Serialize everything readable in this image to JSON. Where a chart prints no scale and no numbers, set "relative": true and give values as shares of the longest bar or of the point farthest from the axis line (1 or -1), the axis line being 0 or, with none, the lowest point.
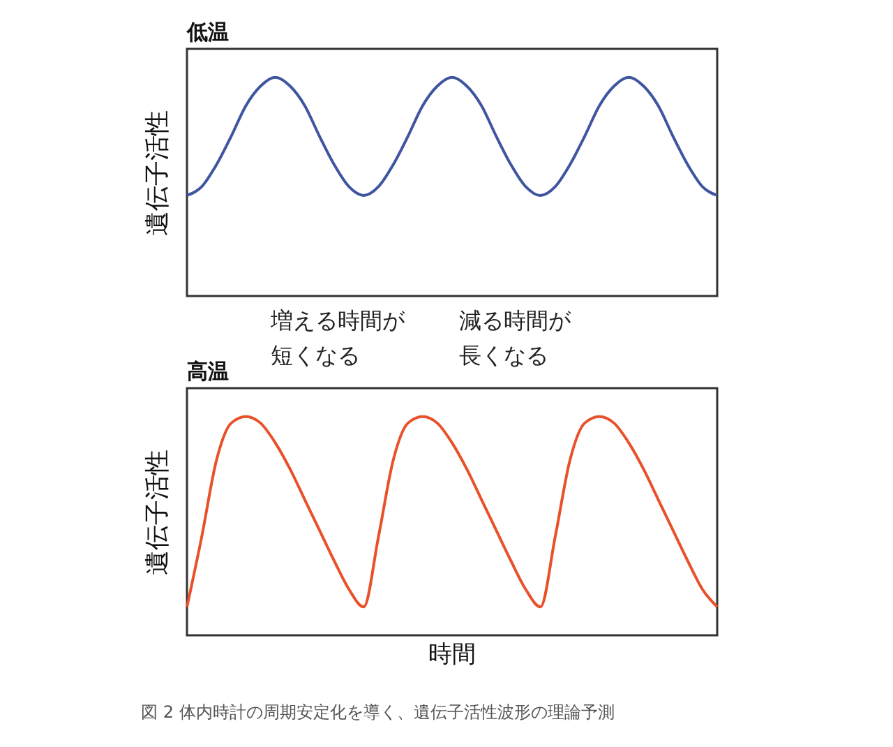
{
  "chart_data": [
    {
      "type": "line",
      "title": "低温",
      "ylabel": "遺伝子活性",
      "relative": true,
      "tick_labels": false,
      "grid": false,
      "marker": "none",
      "line_style": "solid",
      "categories": [
        null,
        null,
        null,
        null,
        null,
        null,
        null,
        null,
        null,
        null,
        null,
        null,
        null,
        null,
        null,
        null,
        null,
        null,
        null,
        null,
        null,
        null,
        null,
        null,
        null,
        null,
        null,
        null,
        null,
        null,
        null,
        null,
        null,
        null,
        null,
        null,
        null
      ],
      "series": [
        {
          "color": "#3f55a0",
          "values": [
            0.46,
            0.5,
            0.6,
            0.73,
            0.87,
            0.96,
            1,
            0.96,
            0.87,
            0.73,
            0.6,
            0.5,
            0.46,
            0.5,
            0.6,
            0.73,
            0.87,
            0.96,
            1,
            0.96,
            0.87,
            0.73,
            0.6,
            0.5,
            0.46,
            0.5,
            0.6,
            0.73,
            0.87,
            0.96,
            1,
            0.96,
            0.87,
            0.73,
            0.6,
            0.5,
            0.46
          ]
        }
      ]
    },
    {
      "type": "line",
      "title": "高温",
      "ylabel": "遺伝子活性",
      "xlabel": "時間",
      "relative": true,
      "tick_labels": false,
      "grid": false,
      "marker": "none",
      "line_style": "solid",
      "categories": [
        null,
        null,
        null,
        null,
        null,
        null,
        null,
        null,
        null,
        null,
        null,
        null,
        null,
        null,
        null,
        null,
        null,
        null,
        null,
        null,
        null,
        null,
        null,
        null,
        null,
        null,
        null,
        null,
        null,
        null,
        null,
        null,
        null,
        null,
        null,
        null,
        null
      ],
      "series": [
        {
          "color": "#e8512a",
          "values": [
            0.13,
            0.45,
            0.8,
            0.97,
            1,
            0.97,
            0.88,
            0.76,
            0.62,
            0.48,
            0.34,
            0.21,
            0.13,
            0.45,
            0.8,
            0.97,
            1,
            0.97,
            0.88,
            0.76,
            0.62,
            0.48,
            0.34,
            0.21,
            0.13,
            0.45,
            0.8,
            0.97,
            1,
            0.97,
            0.88,
            0.76,
            0.62,
            0.48,
            0.34,
            0.21,
            0.13
          ]
        }
      ],
      "annotations": [
        "増える時間が短くなる",
        "減る時間が長くなる",
        "図 2 体内時計の周期安定化を導く、遺伝子活性波形の理論予測"
      ]
    }
  ]
}
